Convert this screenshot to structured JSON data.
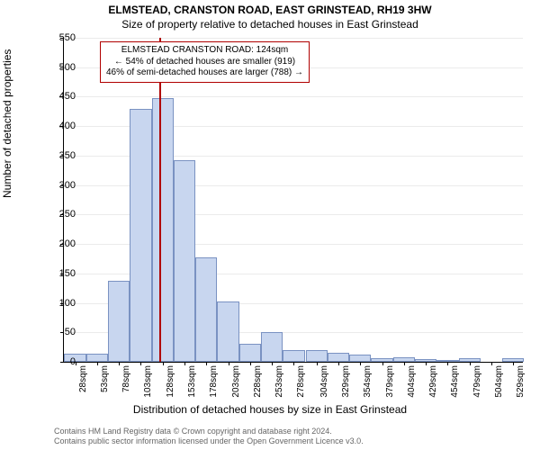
{
  "title_line1": "ELMSTEAD, CRANSTON ROAD, EAST GRINSTEAD, RH19 3HW",
  "title_line2": "Size of property relative to detached houses in East Grinstead",
  "chart": {
    "type": "histogram",
    "ylabel": "Number of detached properties",
    "xlabel": "Distribution of detached houses by size in East Grinstead",
    "ylim": [
      0,
      550
    ],
    "ytick_step": 50,
    "bar_fill": "#c8d6ef",
    "bar_border": "#7a92c2",
    "background_color": "#ffffff",
    "grid_color": "#e9e9e9",
    "reference_line_color": "#b00000",
    "reference_x": 124,
    "xmin": 15,
    "xmax": 540,
    "bin_width": 25,
    "x_tick_labels": [
      "28sqm",
      "53sqm",
      "78sqm",
      "103sqm",
      "128sqm",
      "153sqm",
      "178sqm",
      "203sqm",
      "228sqm",
      "253sqm",
      "278sqm",
      "304sqm",
      "329sqm",
      "354sqm",
      "379sqm",
      "404sqm",
      "429sqm",
      "454sqm",
      "479sqm",
      "504sqm",
      "529sqm"
    ],
    "x_tick_positions": [
      28,
      53,
      78,
      103,
      128,
      153,
      178,
      203,
      228,
      253,
      278,
      304,
      329,
      354,
      379,
      404,
      429,
      454,
      479,
      504,
      529
    ],
    "bars": [
      {
        "x": 28,
        "value": 14
      },
      {
        "x": 53,
        "value": 14
      },
      {
        "x": 78,
        "value": 137
      },
      {
        "x": 103,
        "value": 430
      },
      {
        "x": 128,
        "value": 447
      },
      {
        "x": 153,
        "value": 342
      },
      {
        "x": 178,
        "value": 178
      },
      {
        "x": 203,
        "value": 103
      },
      {
        "x": 228,
        "value": 31
      },
      {
        "x": 253,
        "value": 50
      },
      {
        "x": 278,
        "value": 20
      },
      {
        "x": 304,
        "value": 20
      },
      {
        "x": 329,
        "value": 16
      },
      {
        "x": 354,
        "value": 12
      },
      {
        "x": 379,
        "value": 6
      },
      {
        "x": 404,
        "value": 8
      },
      {
        "x": 429,
        "value": 5
      },
      {
        "x": 454,
        "value": 3
      },
      {
        "x": 479,
        "value": 6
      },
      {
        "x": 504,
        "value": 0
      },
      {
        "x": 529,
        "value": 6
      }
    ]
  },
  "annotation": {
    "line1": "ELMSTEAD CRANSTON ROAD: 124sqm",
    "line2": "← 54% of detached houses are smaller (919)",
    "line3": "46% of semi-detached houses are larger (788) →"
  },
  "footer": {
    "line1": "Contains HM Land Registry data © Crown copyright and database right 2024.",
    "line2": "Contains public sector information licensed under the Open Government Licence v3.0."
  }
}
